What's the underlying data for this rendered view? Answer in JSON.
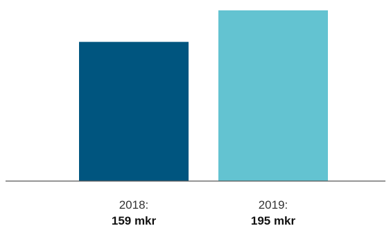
{
  "chart_data": {
    "type": "bar",
    "categories": [
      "2018:",
      "2019:"
    ],
    "values": [
      159,
      195
    ],
    "value_labels": [
      "159 mkr",
      "195 mkr"
    ],
    "title": "",
    "xlabel": "",
    "ylabel": "",
    "colors": [
      "#00557F",
      "#63C3D1"
    ],
    "axis_color": "#555555",
    "grid": false,
    "legend": "none"
  }
}
